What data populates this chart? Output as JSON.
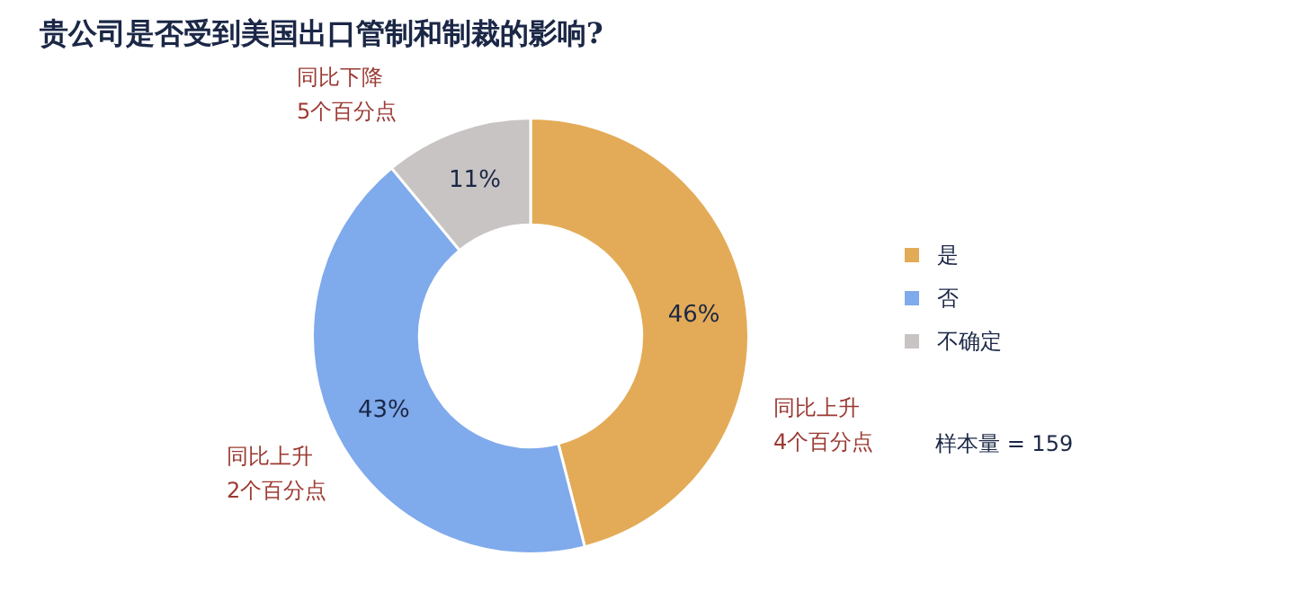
{
  "chart_data": {
    "type": "donut",
    "title": "贵公司是否受到美国出口管制和制裁的影响?",
    "categories": [
      "是",
      "否",
      "不确定"
    ],
    "values": [
      46,
      43,
      11
    ],
    "colors": [
      "#e3ab57",
      "#7faaeb",
      "#c8c4c3"
    ],
    "value_labels": [
      "46%",
      "43%",
      "11%"
    ],
    "legend": "right",
    "annotations": [
      "同比上升\n4个百分点",
      "同比上升\n2个百分点",
      "同比下降\n5个百分点",
      "样本量 = 159"
    ]
  }
}
